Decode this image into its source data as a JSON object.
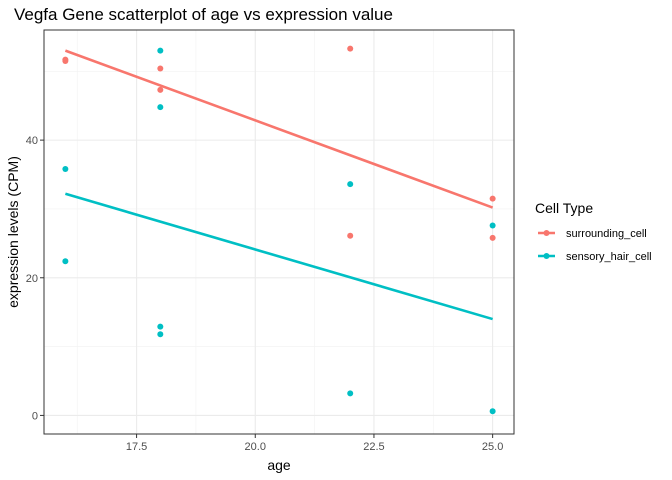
{
  "chart_data": {
    "type": "scatter",
    "title": "Vegfa Gene scatterplot of age vs expression value",
    "xlabel": "age",
    "ylabel": "expression levels (CPM)",
    "xlim": [
      15.55,
      25.45
    ],
    "ylim": [
      -2.7,
      56
    ],
    "x_ticks": [
      17.5,
      20.0,
      22.5,
      25.0
    ],
    "x_tick_labels": [
      "17.5",
      "20.0",
      "22.5",
      "25.0"
    ],
    "y_ticks": [
      0,
      20,
      40
    ],
    "y_tick_labels": [
      "0",
      "20",
      "40"
    ],
    "grid": true,
    "legend": {
      "title": "Cell Type",
      "position": "right"
    },
    "series": [
      {
        "name": "surrounding_cell",
        "color": "#F8766D",
        "points": [
          {
            "x": 16,
            "y": 51.7
          },
          {
            "x": 16,
            "y": 51.5
          },
          {
            "x": 18,
            "y": 50.4
          },
          {
            "x": 18,
            "y": 47.3
          },
          {
            "x": 22,
            "y": 53.3
          },
          {
            "x": 22,
            "y": 26.1
          },
          {
            "x": 25,
            "y": 31.5
          },
          {
            "x": 25,
            "y": 25.8
          }
        ],
        "trend": {
          "x": [
            16,
            25
          ],
          "y": [
            53.0,
            30.2
          ]
        }
      },
      {
        "name": "sensory_hair_cell",
        "color": "#00BFC4",
        "points": [
          {
            "x": 16,
            "y": 35.8
          },
          {
            "x": 16,
            "y": 22.4
          },
          {
            "x": 18,
            "y": 53.0
          },
          {
            "x": 18,
            "y": 44.8
          },
          {
            "x": 18,
            "y": 12.9
          },
          {
            "x": 18,
            "y": 11.8
          },
          {
            "x": 22,
            "y": 33.6
          },
          {
            "x": 22,
            "y": 3.2
          },
          {
            "x": 25,
            "y": 27.6
          },
          {
            "x": 25,
            "y": 0.6
          }
        ],
        "trend": {
          "x": [
            16,
            25
          ],
          "y": [
            32.2,
            14.0
          ]
        }
      }
    ]
  }
}
